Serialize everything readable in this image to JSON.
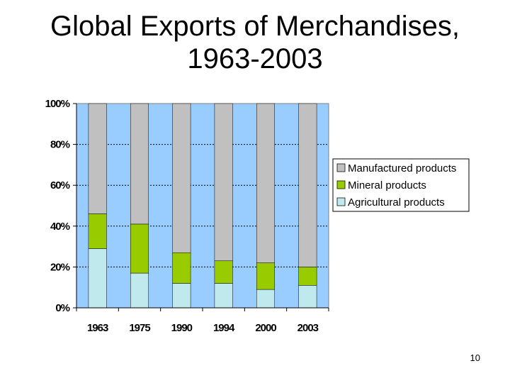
{
  "slide": {
    "title_line1": "Global Exports of Merchandises,",
    "title_line2": "1963-2003",
    "page_number": "10"
  },
  "chart_data": {
    "type": "bar",
    "stacked": true,
    "percent_stacked": true,
    "categories": [
      "1963",
      "1975",
      "1990",
      "1994",
      "2000",
      "2003"
    ],
    "series": [
      {
        "name": "Agricultural products",
        "values": [
          29,
          17,
          12,
          12,
          9,
          11
        ],
        "color": "#bfe9ec"
      },
      {
        "name": "Mineral products",
        "values": [
          17,
          24,
          15,
          11,
          13,
          9
        ],
        "color": "#99cc00"
      },
      {
        "name": "Manufactured products",
        "values": [
          54,
          59,
          73,
          77,
          78,
          80
        ],
        "color": "#c0c0c0"
      }
    ],
    "legend_order": [
      "Manufactured products",
      "Mineral products",
      "Agricultural products"
    ],
    "ylim": [
      0,
      100
    ],
    "yticks": [
      "0%",
      "20%",
      "40%",
      "60%",
      "80%",
      "100%"
    ],
    "grid": true,
    "legend_position": "right",
    "plot_background": "#99ccff"
  }
}
